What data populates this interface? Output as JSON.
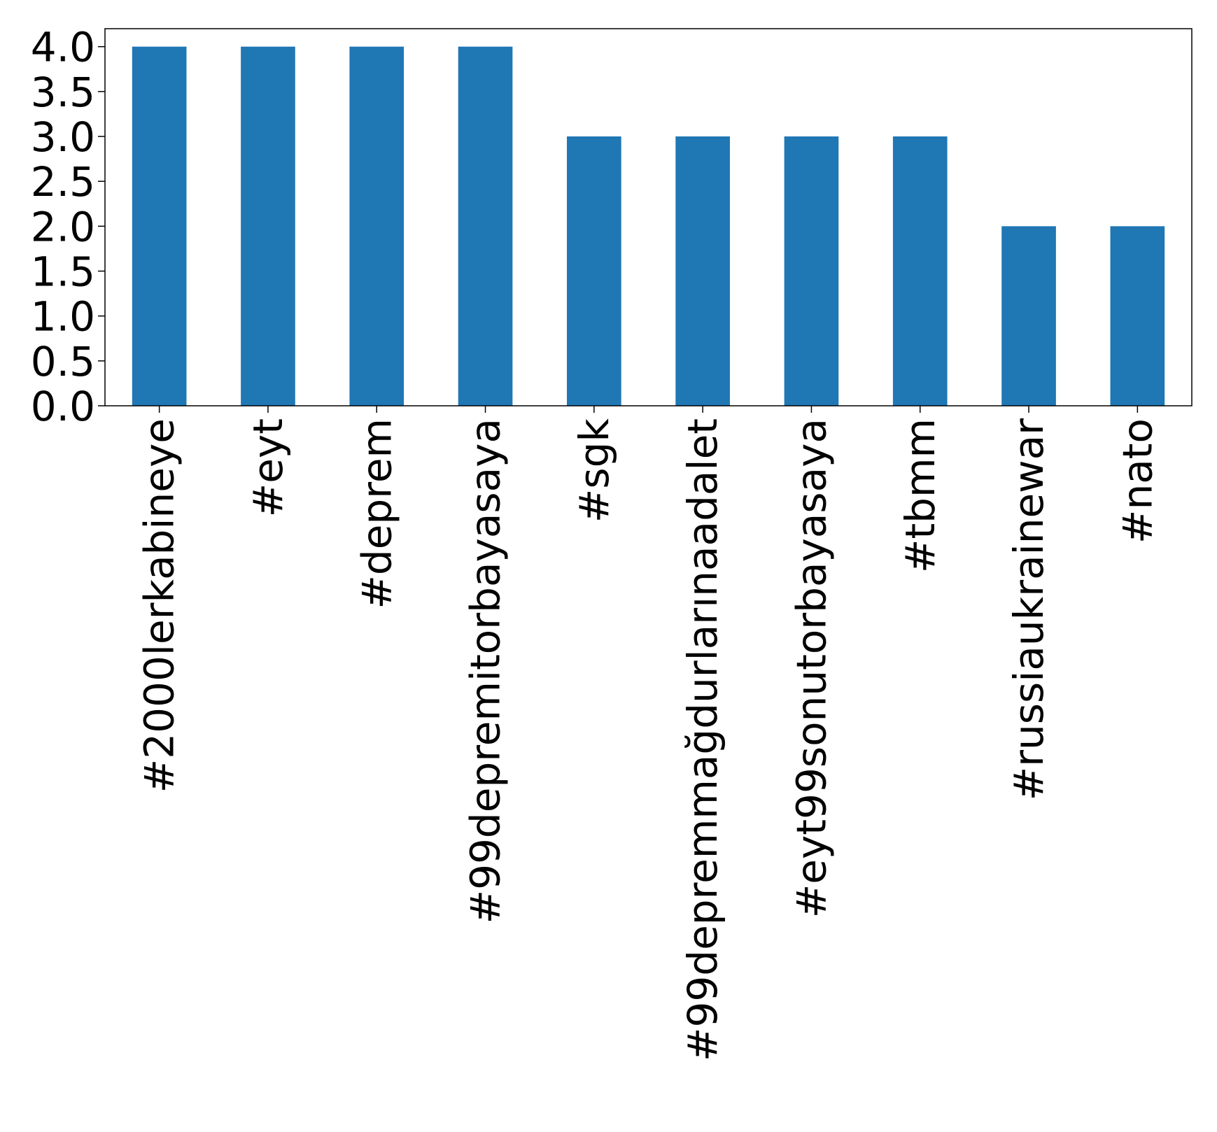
{
  "chart_data": {
    "type": "bar",
    "title": "",
    "xlabel": "",
    "ylabel": "",
    "categories": [
      "#2000lerkabineye",
      "#eyt",
      "#deprem",
      "#99depremitorbayasaya",
      "#sgk",
      "#99depremmağdurlarınaadalet",
      "#eyt99sonutorbayasaya",
      "#tbmm",
      "#russiaukrainewar",
      "#nato"
    ],
    "values": [
      4,
      4,
      4,
      4,
      3,
      3,
      3,
      3,
      2,
      2
    ],
    "ylim": [
      0,
      4.2
    ],
    "yticks": [
      "0.0",
      "0.5",
      "1.0",
      "1.5",
      "2.0",
      "2.5",
      "3.0",
      "3.5",
      "4.0"
    ],
    "bar_color": "#1f77b4",
    "grid": false,
    "legend": "none"
  }
}
